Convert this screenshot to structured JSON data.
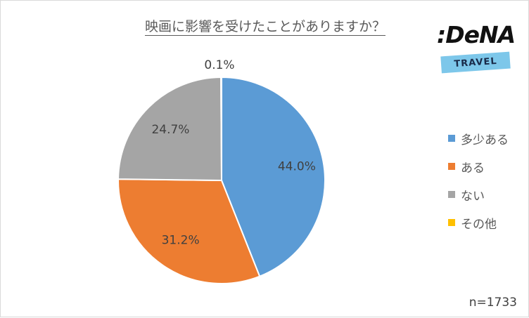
{
  "chart_data": {
    "type": "pie",
    "title": "映画に影響を受けたことがありますか？",
    "categories": [
      "多少ある",
      "ある",
      "ない",
      "その他"
    ],
    "values": [
      44.0,
      31.2,
      24.7,
      0.1
    ],
    "value_labels": [
      "44.0%",
      "31.2%",
      "24.7%",
      "0.1%"
    ],
    "colors": [
      "#5b9bd5",
      "#ed7d31",
      "#a5a5a5",
      "#ffc000"
    ],
    "legend_position": "right",
    "start_angle": "top-clockwise",
    "note": "n=1733"
  },
  "logo": {
    "brand": ":DeNA",
    "sub": "TRAVEL"
  }
}
